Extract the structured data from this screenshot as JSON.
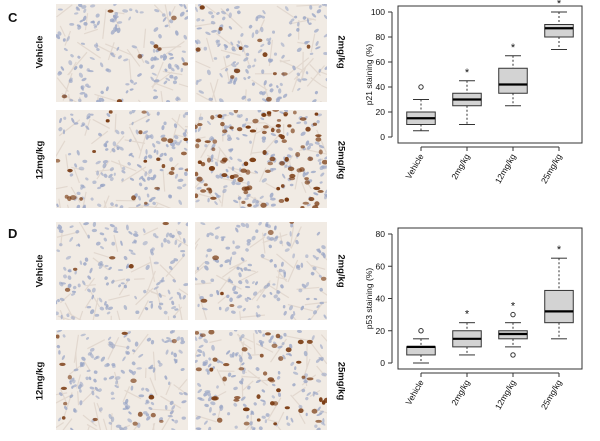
{
  "panels": [
    {
      "letter": "C",
      "image_labels": {
        "top_left": "Vehicle",
        "top_right": "2mg/kg",
        "bottom_left": "12mg/kg",
        "bottom_right": "25mg/kg"
      },
      "chart_data": {
        "type": "box",
        "title": "",
        "xlabel": "",
        "ylabel": "p21 staining (%)",
        "ylim": [
          0,
          100
        ],
        "yticks": [
          0,
          20,
          40,
          60,
          80,
          100
        ],
        "grid": false,
        "categories": [
          "Vehicle",
          "2mg/kg",
          "12mg/kg",
          "25mg/kg"
        ],
        "boxes": [
          {
            "min": 5,
            "q1": 10,
            "median": 15,
            "q3": 20,
            "max": 30,
            "outliers": [
              40
            ],
            "significance": ""
          },
          {
            "min": 10,
            "q1": 25,
            "median": 30,
            "q3": 35,
            "max": 45,
            "outliers": [],
            "significance": "*"
          },
          {
            "min": 25,
            "q1": 35,
            "median": 42,
            "q3": 55,
            "max": 65,
            "outliers": [],
            "significance": "*"
          },
          {
            "min": 70,
            "q1": 80,
            "median": 87,
            "q3": 90,
            "max": 100,
            "outliers": [],
            "significance": "*"
          }
        ]
      }
    },
    {
      "letter": "D",
      "image_labels": {
        "top_left": "Vehicle",
        "top_right": "2mg/kg",
        "bottom_left": "12mg/kg",
        "bottom_right": "25mg/kg"
      },
      "chart_data": {
        "type": "box",
        "title": "",
        "xlabel": "",
        "ylabel": "p53 staining (%)",
        "ylim": [
          0,
          80
        ],
        "yticks": [
          0,
          20,
          40,
          60,
          80
        ],
        "grid": false,
        "categories": [
          "Vehicle",
          "2mg/kg",
          "12mg/kg",
          "25mg/kg"
        ],
        "boxes": [
          {
            "min": 0,
            "q1": 5,
            "median": 10,
            "q3": 10,
            "max": 15,
            "outliers": [
              20
            ],
            "significance": ""
          },
          {
            "min": 5,
            "q1": 10,
            "median": 15,
            "q3": 20,
            "max": 25,
            "outliers": [],
            "significance": "*"
          },
          {
            "min": 10,
            "q1": 15,
            "median": 18,
            "q3": 20,
            "max": 25,
            "outliers": [
              5,
              30
            ],
            "significance": "*"
          },
          {
            "min": 15,
            "q1": 25,
            "median": 32,
            "q3": 45,
            "max": 65,
            "outliers": [],
            "significance": "*"
          }
        ]
      }
    }
  ],
  "colors": {
    "box_fill": "#d3d3d3",
    "brown_stain": "#7a3b12",
    "blue_nuclei": "#9aa6c6",
    "tissue_bg": "#f1ebe4"
  }
}
